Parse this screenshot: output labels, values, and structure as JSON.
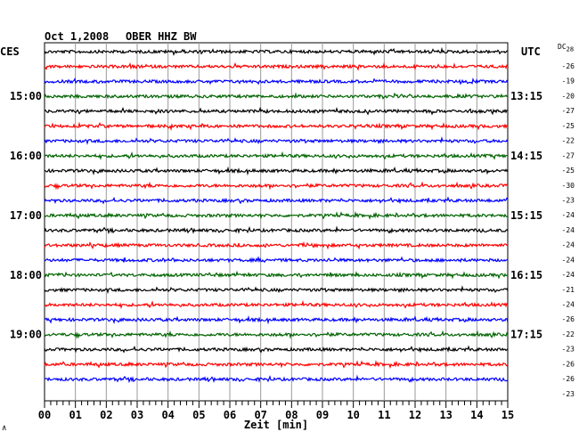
{
  "header": {
    "date": "Oct 1,2008",
    "station": "OBER HHZ BW",
    "left_zone": "CES",
    "right_zone": "UTC",
    "dc_label": "DC",
    "dc_sub": "28"
  },
  "chart_data": {
    "type": "line",
    "title": "Oct 1,2008   OBER HHZ BW",
    "xlabel": "Zeit [min]",
    "ylabel": "",
    "x_ticks": [
      "00",
      "01",
      "02",
      "03",
      "04",
      "05",
      "06",
      "07",
      "08",
      "09",
      "10",
      "11",
      "12",
      "13",
      "14",
      "15"
    ],
    "xlim": [
      0,
      15
    ],
    "grid": true,
    "trace_colors": [
      "#000000",
      "#ff0000",
      "#0000ff",
      "#006400"
    ],
    "left_hour_labels": [
      "15:00",
      "16:00",
      "17:00",
      "18:00",
      "19:00"
    ],
    "right_time_labels": [
      "13:15",
      "14:15",
      "15:15",
      "16:15",
      "17:15"
    ],
    "dc_offsets": [
      "-26",
      "-19",
      "-20",
      "-27",
      "-25",
      "-22",
      "-27",
      "-25",
      "-30",
      "-23",
      "-24",
      "-24",
      "-24",
      "-24",
      "-24",
      "-21",
      "-24",
      "-26",
      "-22",
      "-23",
      "-26",
      "-26",
      "-23"
    ]
  },
  "footer": {
    "corner_mark": "∧"
  }
}
